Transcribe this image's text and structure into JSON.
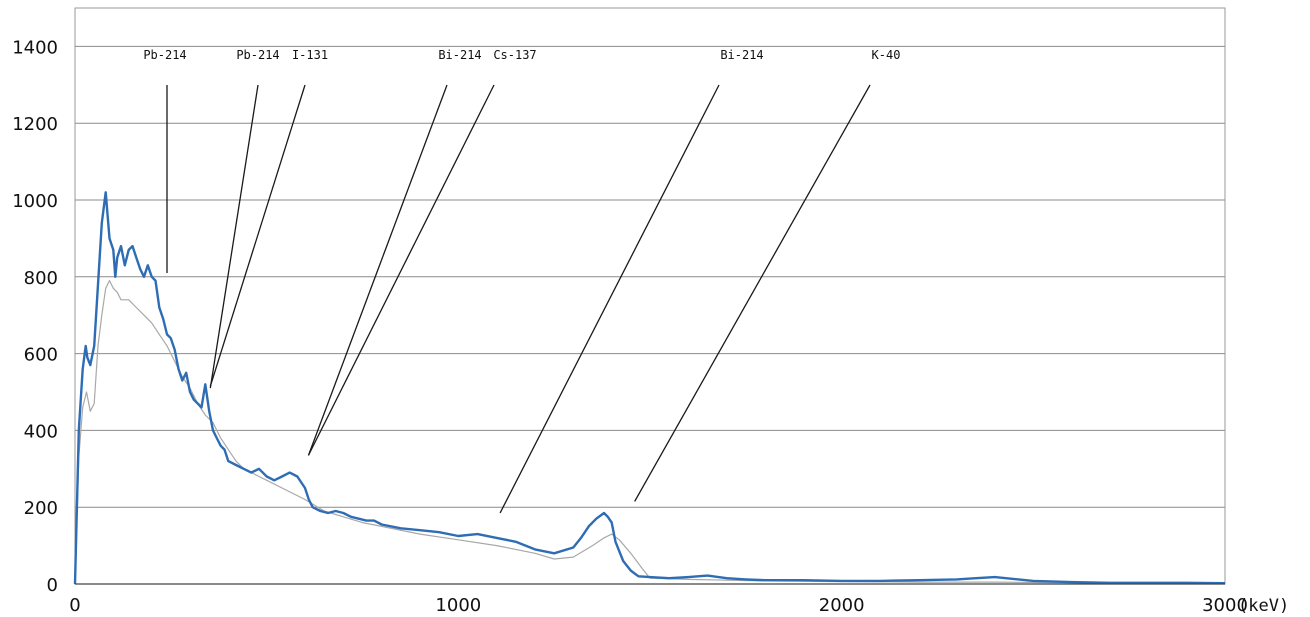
{
  "chart_data": {
    "type": "line",
    "title": "",
    "xlabel": "",
    "ylabel": "",
    "x_unit": "(keV)",
    "xlim": [
      0,
      3000
    ],
    "ylim": [
      0,
      1500
    ],
    "x_ticks": [
      0,
      1000,
      2000,
      3000
    ],
    "y_ticks": [
      0,
      200,
      400,
      600,
      800,
      1000,
      1200,
      1400
    ],
    "grid": "horizontal",
    "legend": "none",
    "colors": {
      "blue": "#2e6db4",
      "gray": "#a8a8a8",
      "grid": "#8c8c8c",
      "annotation": "#1a1a1a"
    },
    "series": [
      {
        "color": "#2e6db4",
        "x": [
          0,
          10,
          20,
          28,
          32,
          40,
          50,
          60,
          70,
          80,
          90,
          100,
          105,
          110,
          120,
          130,
          140,
          150,
          160,
          170,
          180,
          190,
          200,
          210,
          220,
          230,
          240,
          250,
          260,
          270,
          280,
          290,
          300,
          310,
          320,
          330,
          340,
          350,
          360,
          370,
          380,
          390,
          400,
          420,
          440,
          460,
          480,
          500,
          520,
          540,
          560,
          580,
          600,
          610,
          620,
          640,
          660,
          680,
          700,
          720,
          740,
          760,
          780,
          800,
          850,
          900,
          950,
          1000,
          1050,
          1100,
          1150,
          1200,
          1250,
          1300,
          1320,
          1340,
          1360,
          1380,
          1390,
          1400,
          1410,
          1430,
          1450,
          1470,
          1500,
          1550,
          1600,
          1650,
          1700,
          1750,
          1800,
          1900,
          2000,
          2100,
          2200,
          2300,
          2350,
          2400,
          2500,
          2600,
          2700,
          2800,
          2900,
          3000
        ],
        "values": [
          0,
          400,
          560,
          620,
          590,
          570,
          620,
          780,
          940,
          1020,
          900,
          870,
          800,
          850,
          880,
          830,
          870,
          880,
          850,
          820,
          800,
          830,
          800,
          790,
          720,
          690,
          650,
          640,
          610,
          560,
          530,
          550,
          500,
          480,
          470,
          460,
          520,
          450,
          400,
          380,
          360,
          350,
          320,
          310,
          300,
          290,
          300,
          280,
          270,
          280,
          290,
          280,
          250,
          220,
          200,
          190,
          185,
          190,
          185,
          175,
          170,
          165,
          165,
          155,
          145,
          140,
          135,
          125,
          130,
          120,
          110,
          90,
          80,
          95,
          120,
          150,
          170,
          185,
          175,
          160,
          110,
          60,
          35,
          20,
          18,
          15,
          18,
          22,
          15,
          12,
          10,
          10,
          8,
          8,
          10,
          12,
          15,
          18,
          8,
          5,
          3,
          3,
          3,
          2
        ]
      },
      {
        "color": "#a8a8a8",
        "x": [
          0,
          10,
          20,
          30,
          40,
          50,
          60,
          70,
          80,
          90,
          100,
          110,
          120,
          140,
          160,
          180,
          200,
          220,
          240,
          260,
          280,
          300,
          320,
          340,
          360,
          380,
          400,
          420,
          440,
          460,
          480,
          500,
          550,
          600,
          650,
          700,
          750,
          800,
          900,
          1000,
          1100,
          1200,
          1250,
          1300,
          1350,
          1380,
          1400,
          1420,
          1450,
          1480,
          1500,
          1600,
          1700,
          1800,
          2000,
          2200,
          2400,
          2600,
          2800,
          3000
        ],
        "values": [
          0,
          330,
          460,
          500,
          450,
          470,
          620,
          700,
          770,
          790,
          770,
          760,
          740,
          740,
          720,
          700,
          680,
          650,
          620,
          580,
          540,
          510,
          470,
          440,
          420,
          380,
          350,
          320,
          300,
          290,
          280,
          270,
          245,
          220,
          190,
          175,
          160,
          150,
          130,
          115,
          100,
          80,
          65,
          70,
          100,
          120,
          130,
          115,
          80,
          40,
          15,
          12,
          10,
          8,
          6,
          5,
          5,
          3,
          2,
          2
        ]
      }
    ],
    "annotations": [
      {
        "label": "Pb-214",
        "x": 240,
        "y": 810
      },
      {
        "label": "Pb-214",
        "x": 353,
        "y": 510
      },
      {
        "label": "I-131",
        "x": 353,
        "y": 515
      },
      {
        "label": "Bi-214",
        "x": 609,
        "y": 335
      },
      {
        "label": "Cs-137",
        "x": 609,
        "y": 335
      },
      {
        "label": "Bi-214",
        "x": 1109,
        "y": 185
      },
      {
        "label": "K-40",
        "x": 1460,
        "y": 215
      }
    ]
  }
}
